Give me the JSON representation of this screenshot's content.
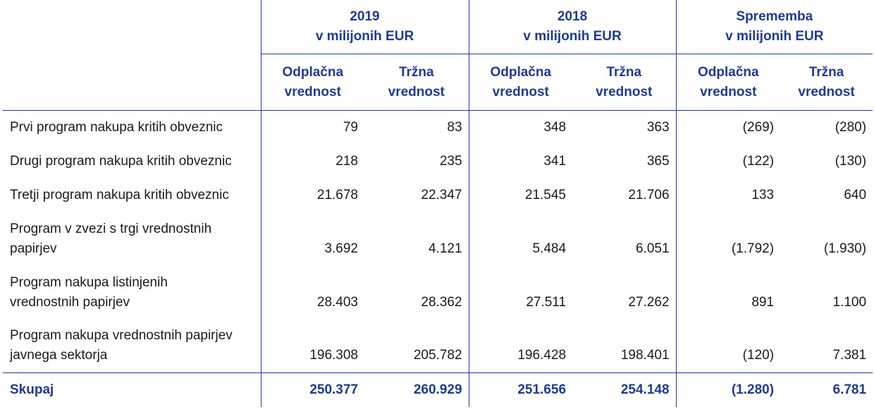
{
  "groups": [
    {
      "year": "2019",
      "unit": "v milijonih EUR"
    },
    {
      "year": "2018",
      "unit": "v milijonih EUR"
    },
    {
      "year": "Sprememba",
      "unit": "v milijonih EUR"
    }
  ],
  "subheaders": {
    "amortised_1": "Odplačna",
    "amortised_2": "vrednost",
    "market_1": "Tržna",
    "market_2": "vrednost"
  },
  "rows": [
    {
      "l1": "Prvi program nakupa kritih obveznic",
      "l2": "",
      "v": [
        "79",
        "83",
        "348",
        "363",
        "(269)",
        "(280)"
      ]
    },
    {
      "l1": "Drugi program nakupa kritih obveznic",
      "l2": "",
      "v": [
        "218",
        "235",
        "341",
        "365",
        "(122)",
        "(130)"
      ]
    },
    {
      "l1": "Tretji program nakupa kritih obveznic",
      "l2": "",
      "v": [
        "21.678",
        "22.347",
        "21.545",
        "21.706",
        "133",
        "640"
      ]
    },
    {
      "l1": "Program v zvezi s trgi vrednostnih",
      "l2": "papirjev",
      "v": [
        "3.692",
        "4.121",
        "5.484",
        "6.051",
        "(1.792)",
        "(1.930)"
      ]
    },
    {
      "l1": "Program nakupa listinjenih",
      "l2": "vrednostnih papirjev",
      "v": [
        "28.403",
        "28.362",
        "27.511",
        "27.262",
        "891",
        "1.100"
      ]
    },
    {
      "l1": "Program nakupa vrednostnih papirjev",
      "l2": "javnega sektorja",
      "v": [
        "196.308",
        "205.782",
        "196.428",
        "198.401",
        "(120)",
        "7.381"
      ]
    }
  ],
  "total": {
    "label": "Skupaj",
    "v": [
      "250.377",
      "260.929",
      "251.656",
      "254.148",
      "(1.280)",
      "6.781"
    ]
  },
  "colors": {
    "accent": "#1f3a93",
    "text": "#1a1a1a"
  }
}
